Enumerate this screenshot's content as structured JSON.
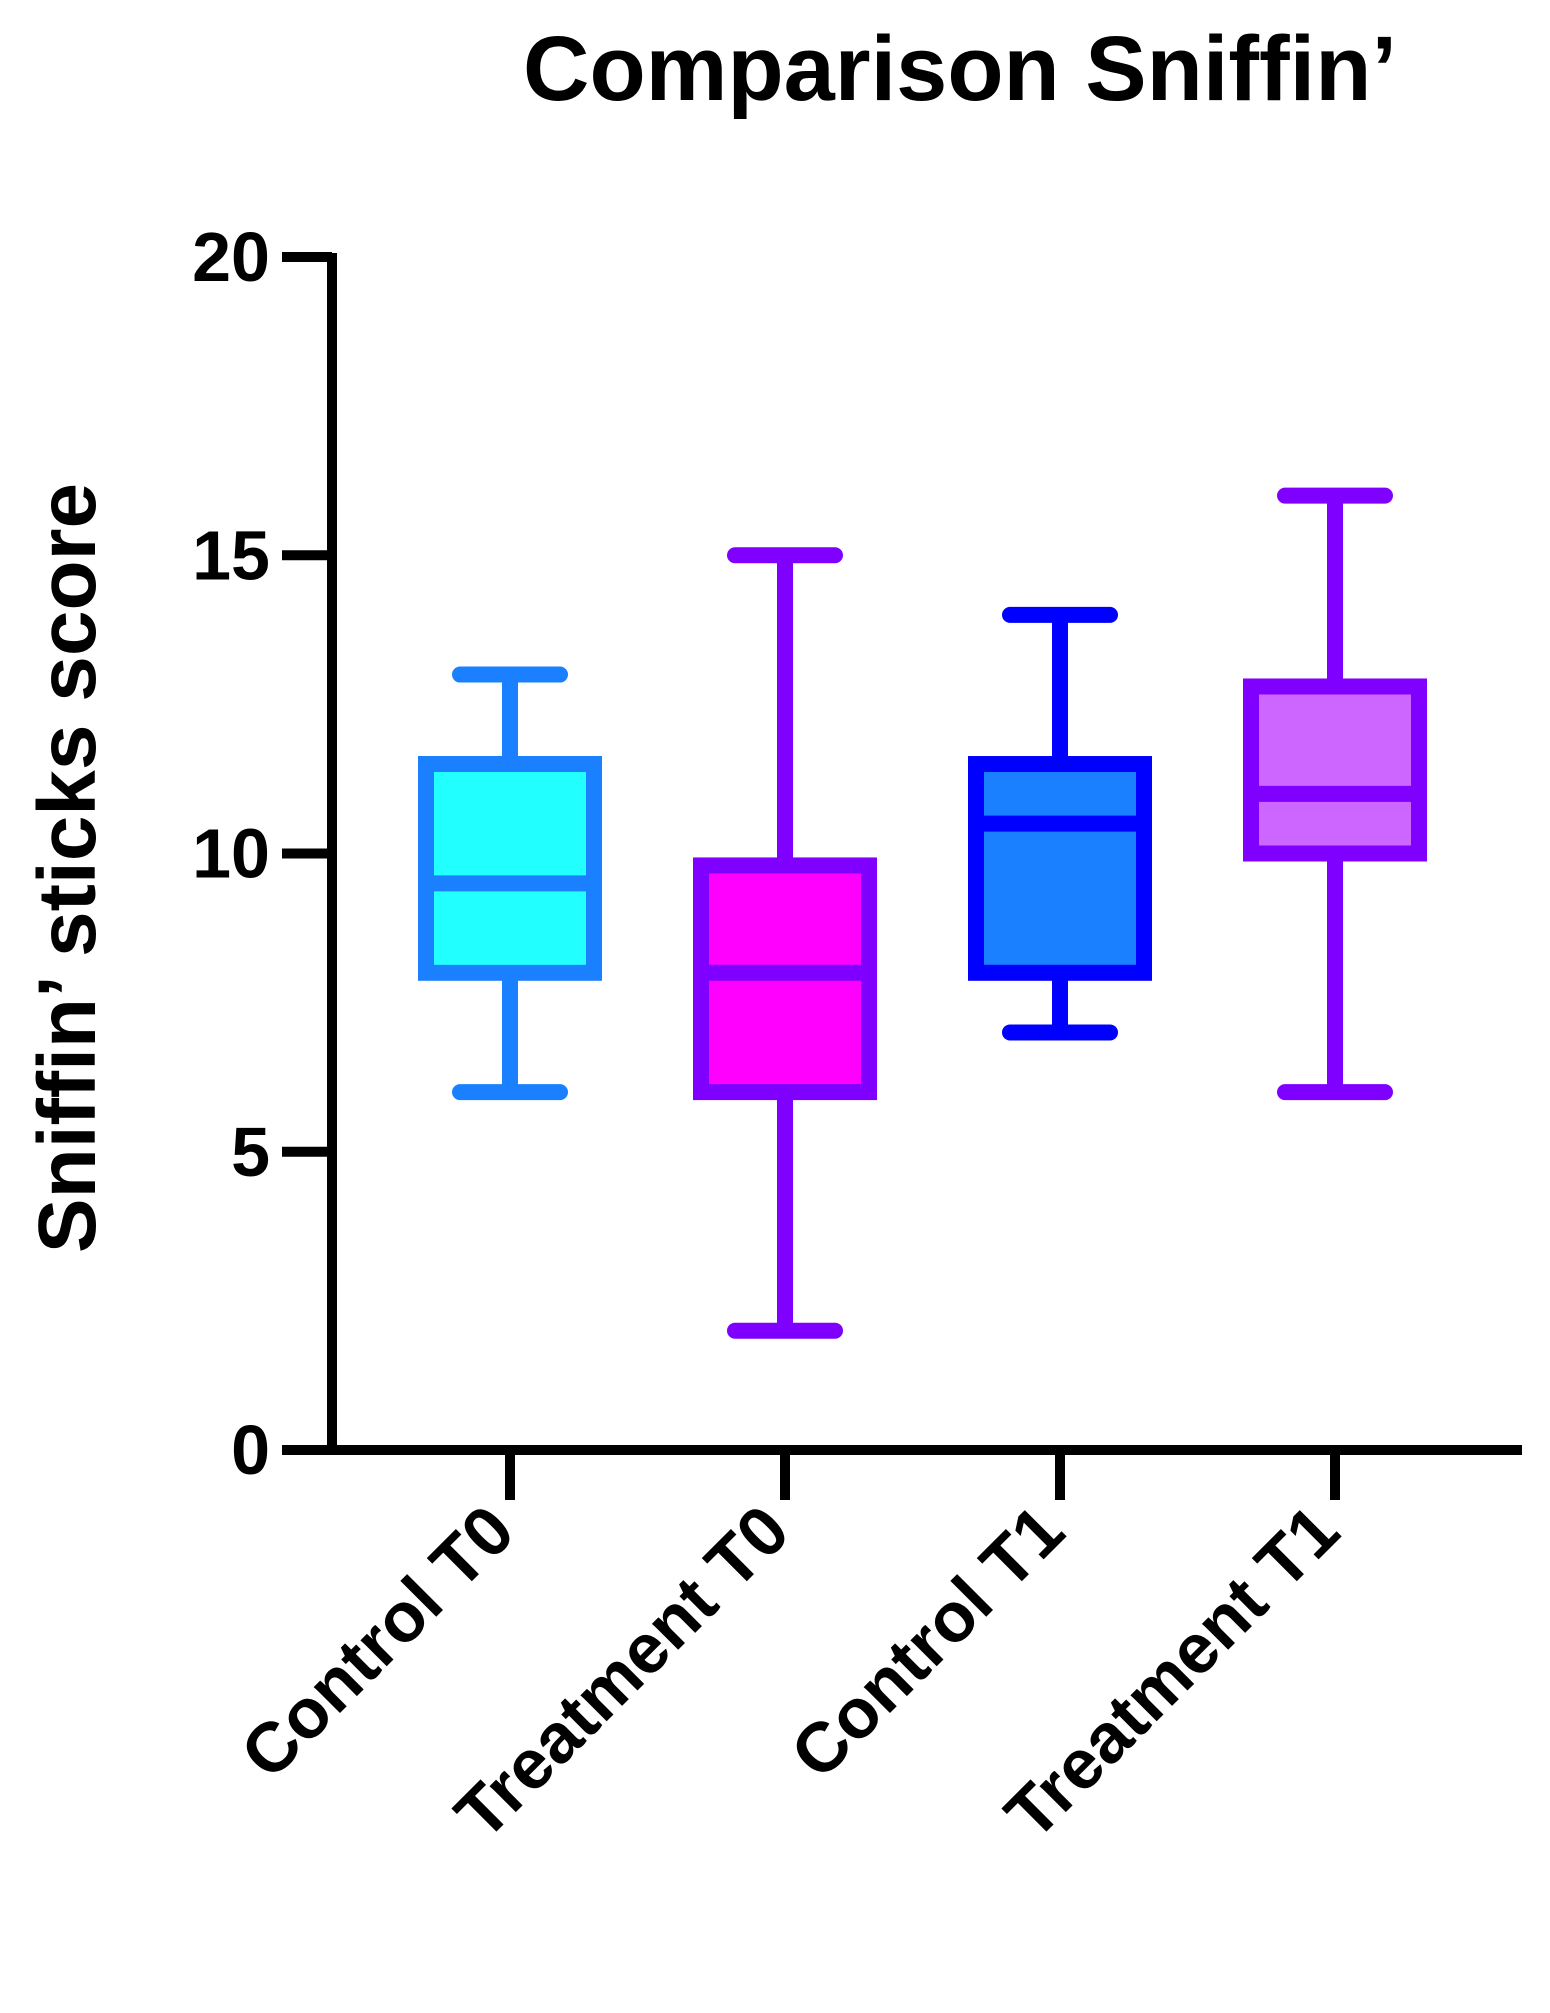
{
  "chart_data": {
    "type": "box",
    "title": "Comparison Sniffin’",
    "xlabel": "",
    "ylabel": "Sniffin’ sticks score",
    "ylim": [
      0,
      20
    ],
    "yticks": [
      0,
      5,
      10,
      15,
      20
    ],
    "grid": false,
    "legend": "none",
    "categories": [
      "Control T0",
      "Treatment T0",
      "Control T1",
      "Treatment T1"
    ],
    "series": [
      {
        "name": "Control T0",
        "min": 6,
        "q1": 8,
        "median": 9.5,
        "q3": 11.5,
        "max": 13,
        "fill": "#22FFFF",
        "stroke": "#1A80FF"
      },
      {
        "name": "Treatment T0",
        "min": 2,
        "q1": 6,
        "median": 8,
        "q3": 9.8,
        "max": 15,
        "fill": "#FF00FF",
        "stroke": "#8000FF"
      },
      {
        "name": "Control T1",
        "min": 7,
        "q1": 8,
        "median": 10.5,
        "q3": 11.5,
        "max": 14,
        "fill": "#1A80FF",
        "stroke": "#0000FF"
      },
      {
        "name": "Treatment T1",
        "min": 6,
        "q1": 10,
        "median": 11,
        "q3": 12.8,
        "max": 16,
        "fill": "#CC66FF",
        "stroke": "#8000FF"
      }
    ]
  }
}
